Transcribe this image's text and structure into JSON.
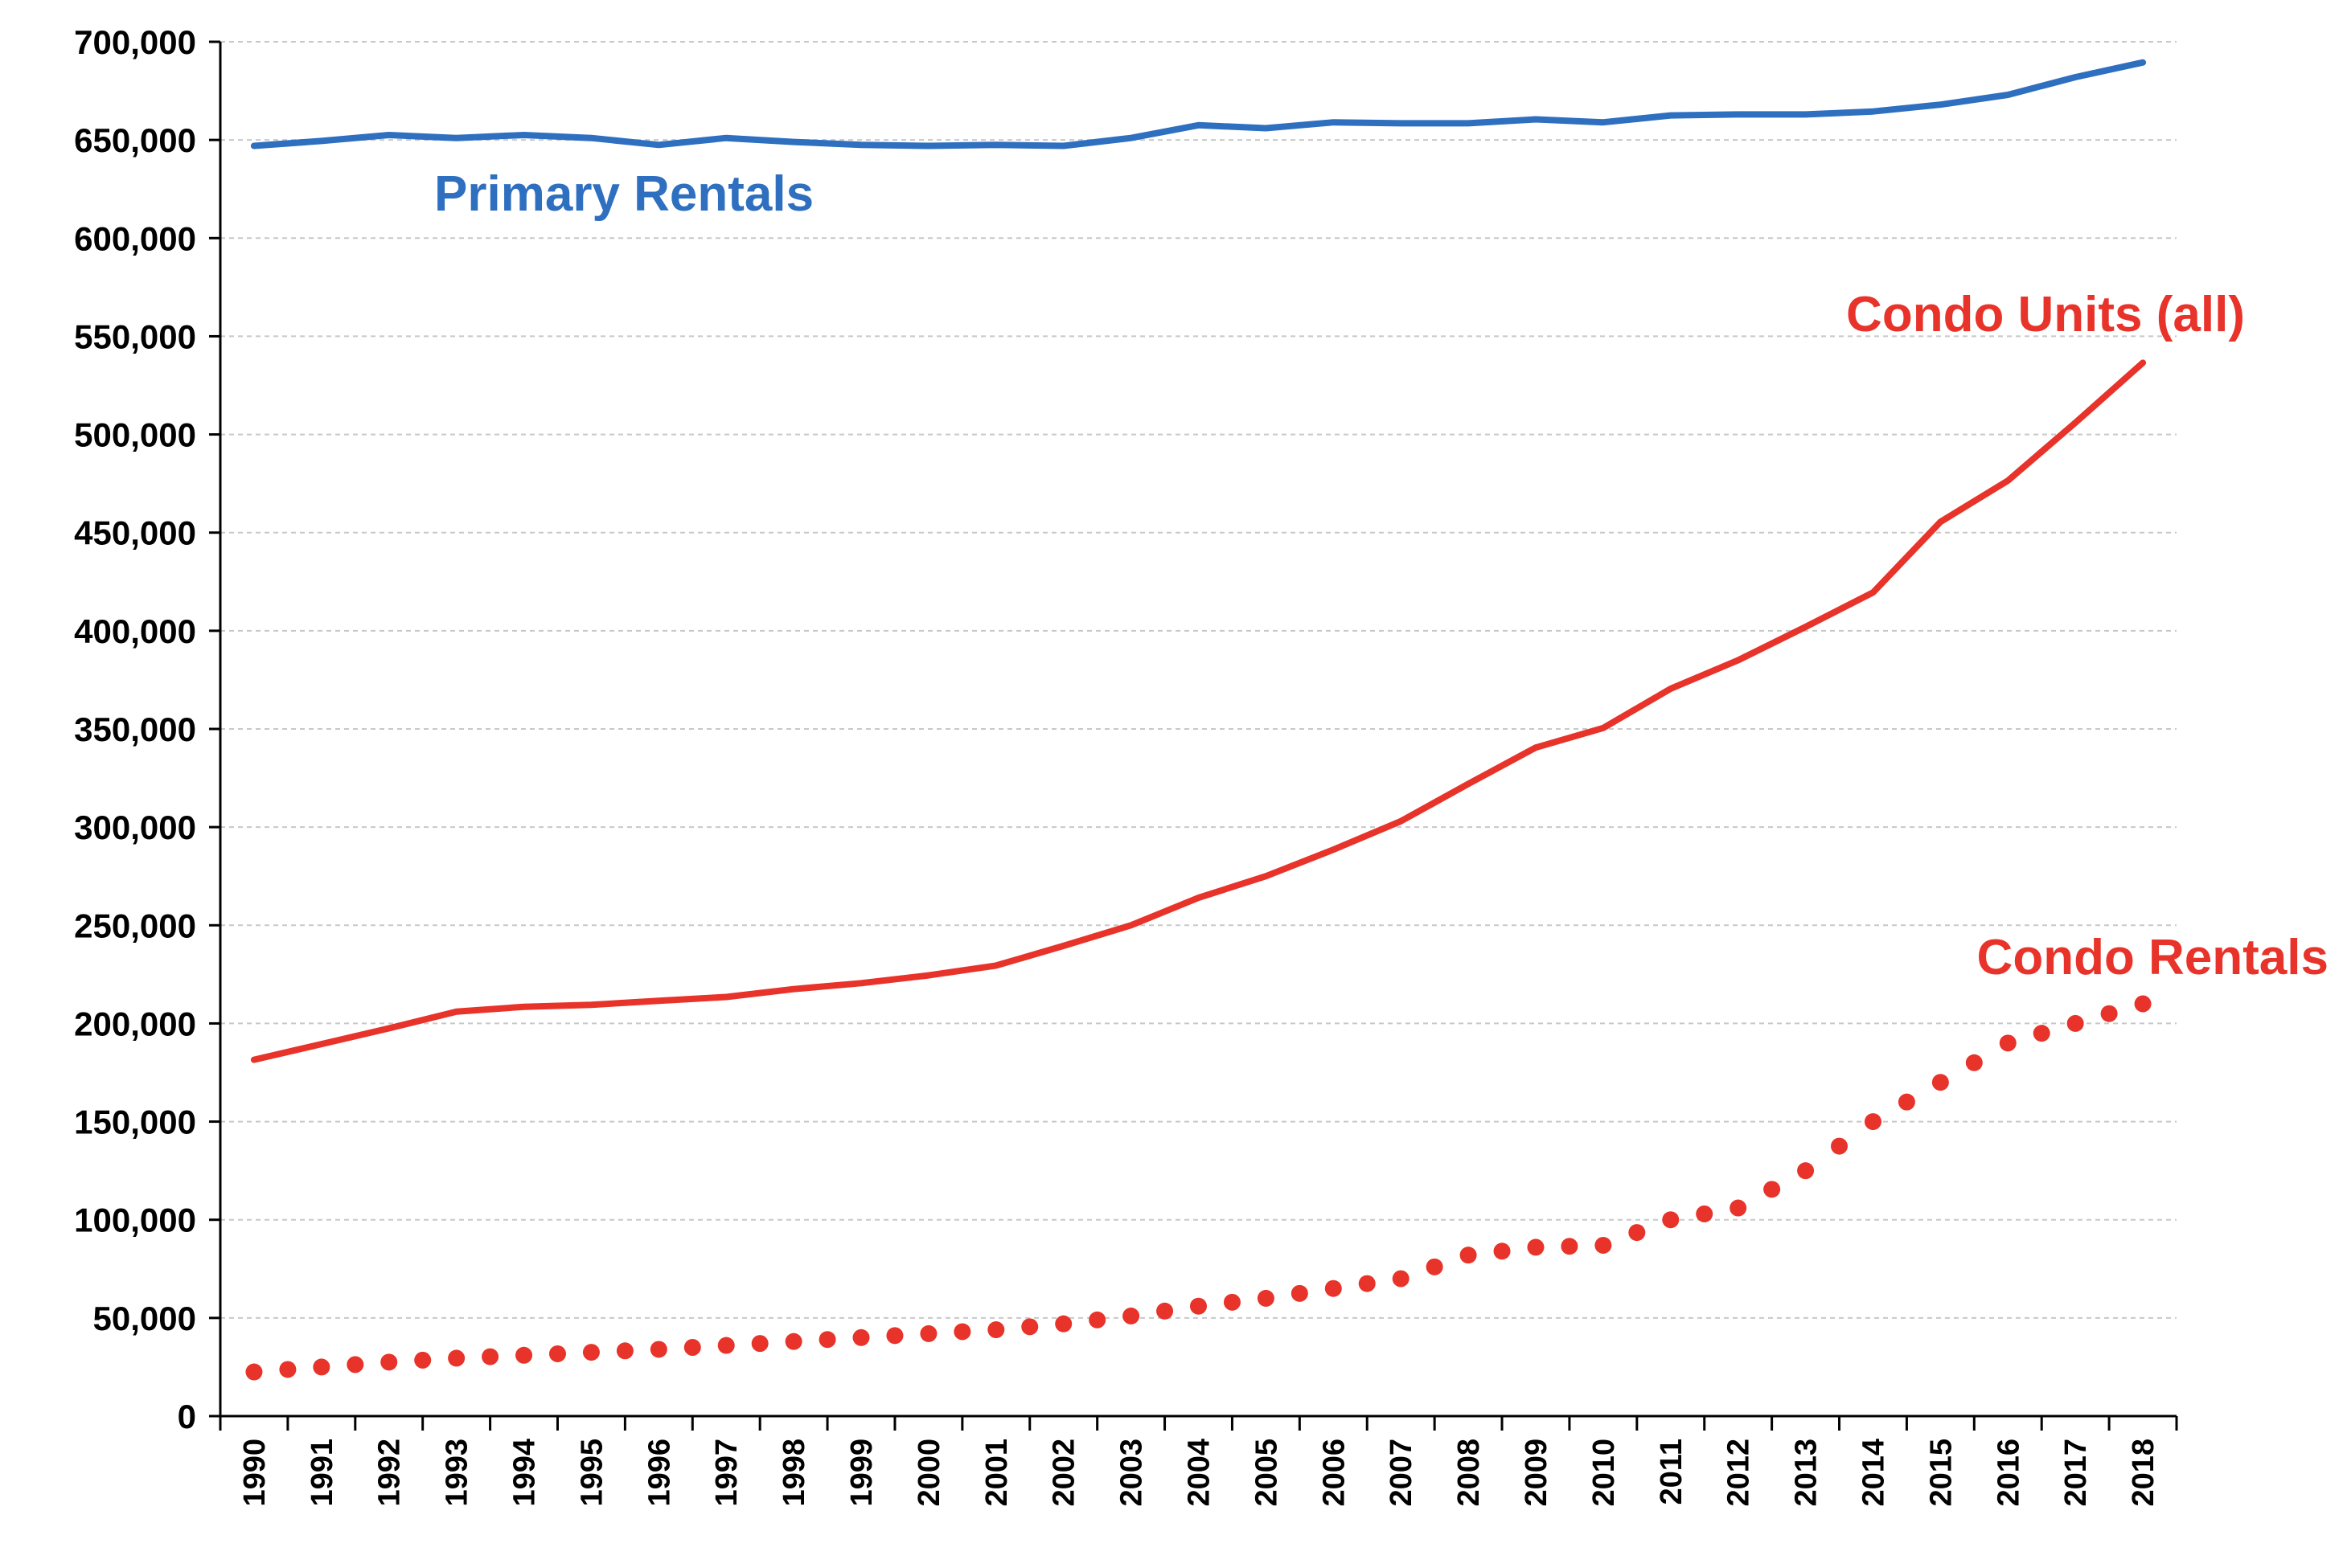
{
  "chart_data": {
    "type": "line",
    "title": "",
    "xlabel": "",
    "ylabel": "",
    "ylim": [
      0,
      700000
    ],
    "yticks": [
      0,
      50000,
      100000,
      150000,
      200000,
      250000,
      300000,
      350000,
      400000,
      450000,
      500000,
      550000,
      600000,
      650000,
      700000
    ],
    "ytick_labels": [
      "0",
      "50,000",
      "100,000",
      "150,000",
      "200,000",
      "250,000",
      "300,000",
      "350,000",
      "400,000",
      "450,000",
      "500,000",
      "550,000",
      "600,000",
      "650,000",
      "700,000"
    ],
    "grid": "horizontal dashed",
    "categories": [
      "1990",
      "1991",
      "1992",
      "1993",
      "1994",
      "1995",
      "1996",
      "1997",
      "1998",
      "1999",
      "2000",
      "2001",
      "2002",
      "2003",
      "2004",
      "2005",
      "2006",
      "2007",
      "2008",
      "2009",
      "2010",
      "2011",
      "2012",
      "2013",
      "2014",
      "2015",
      "2016",
      "2017",
      "2018"
    ],
    "series": [
      {
        "name": "Primary Rentals",
        "color": "#2e6fc0",
        "style": "solid",
        "values": [
          647000,
          649500,
          652500,
          651000,
          652500,
          651000,
          647500,
          651000,
          649000,
          647500,
          647000,
          647500,
          647000,
          651000,
          657500,
          656000,
          659000,
          658500,
          658500,
          660500,
          659000,
          662500,
          663000,
          663000,
          664500,
          668000,
          673000,
          682000,
          689500
        ]
      },
      {
        "name": "Condo Units (all)",
        "color": "#e8332a",
        "style": "solid",
        "values": [
          181500,
          189500,
          197500,
          206000,
          208500,
          209500,
          211500,
          213500,
          217500,
          220500,
          224500,
          229500,
          239500,
          250000,
          264000,
          275000,
          288500,
          303000,
          322000,
          340500,
          350500,
          370500,
          385000,
          402000,
          419500,
          455500,
          476500,
          506000,
          536500
        ]
      },
      {
        "name": "Condo Rentals",
        "color": "#e8332a",
        "style": "dotted",
        "values": [
          22500,
          25000,
          27500,
          29500,
          31000,
          32500,
          34000,
          36000,
          38000,
          40000,
          42000,
          44000,
          47000,
          51000,
          56000,
          60000,
          65000,
          70000,
          82000,
          86000,
          87000,
          100000,
          106000,
          125000,
          150000,
          170000,
          190000,
          200000,
          210000
        ]
      }
    ],
    "annotations": [
      {
        "text": "Primary Rentals",
        "color": "#2e6fc0"
      },
      {
        "text": "Condo Units (all)",
        "color": "#e8332a"
      },
      {
        "text": "Condo Rentals",
        "color": "#e8332a"
      }
    ]
  }
}
